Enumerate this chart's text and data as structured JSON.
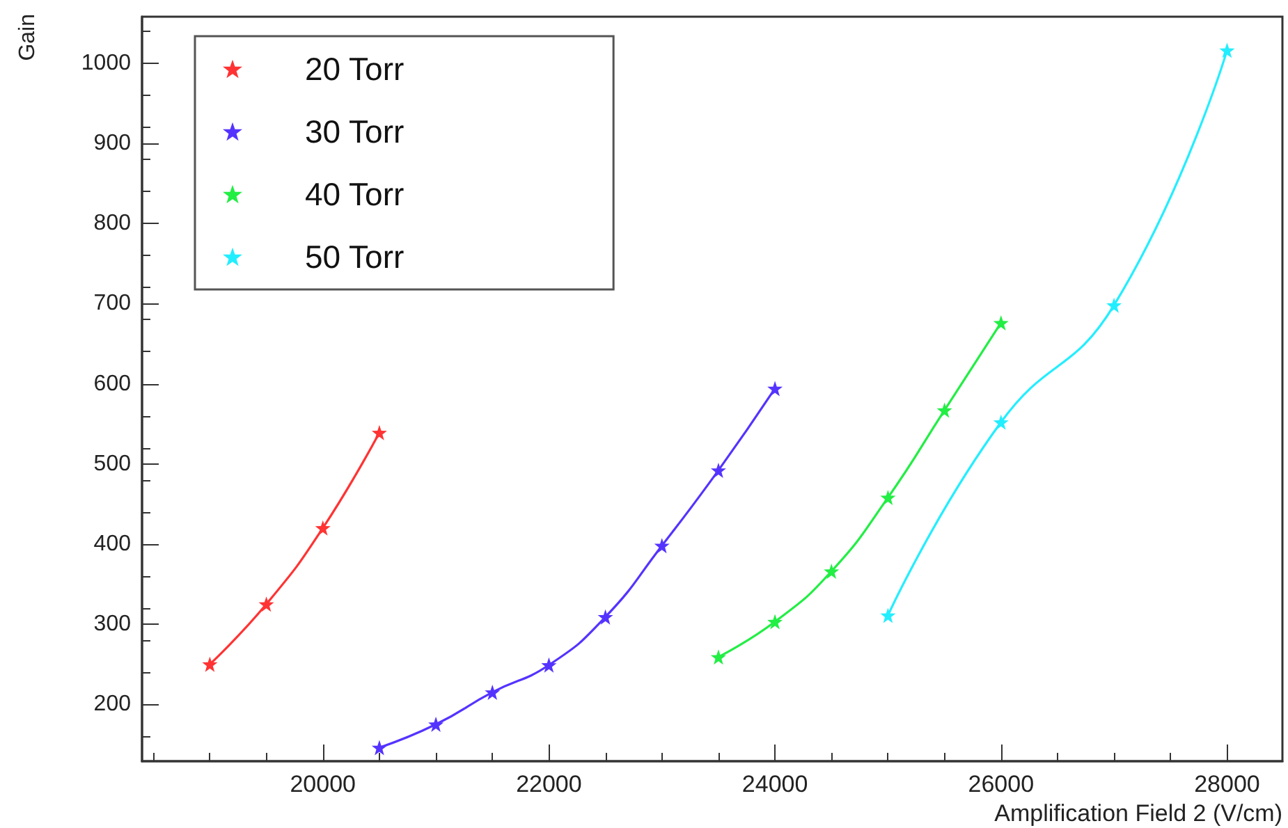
{
  "chart_data": {
    "type": "line",
    "xlabel": "Amplification Field 2 (V/cm)",
    "ylabel": "Gain",
    "xlim": [
      18400,
      28490
    ],
    "xticks": [
      20000,
      22000,
      24000,
      26000,
      28000
    ],
    "ylim": [
      129,
      1058
    ],
    "yticks": [
      200,
      300,
      400,
      500,
      600,
      700,
      800,
      900,
      1000
    ],
    "grid": false,
    "legend": "top left",
    "marker": "star",
    "line_style": "solid",
    "series": [
      {
        "name": "20 Torr",
        "color": "#ff3333",
        "x": [
          19000,
          19500,
          20000,
          20500
        ],
        "values": [
          250,
          325,
          420,
          539
        ]
      },
      {
        "name": "30 Torr",
        "color": "#5533ff",
        "x": [
          20500,
          21000,
          21500,
          22000,
          22500,
          23000,
          23500,
          24000
        ],
        "values": [
          146,
          175,
          215,
          249,
          309,
          398,
          492,
          594
        ]
      },
      {
        "name": "40 Torr",
        "color": "#22ee44",
        "x": [
          23500,
          24000,
          24500,
          25000,
          25500,
          26000
        ],
        "values": [
          259,
          303,
          366,
          458,
          567,
          676
        ]
      },
      {
        "name": "50 Torr",
        "color": "#22eeff",
        "x": [
          25000,
          26000,
          27000,
          28000
        ],
        "values": [
          311,
          552,
          698,
          1016
        ]
      }
    ]
  }
}
